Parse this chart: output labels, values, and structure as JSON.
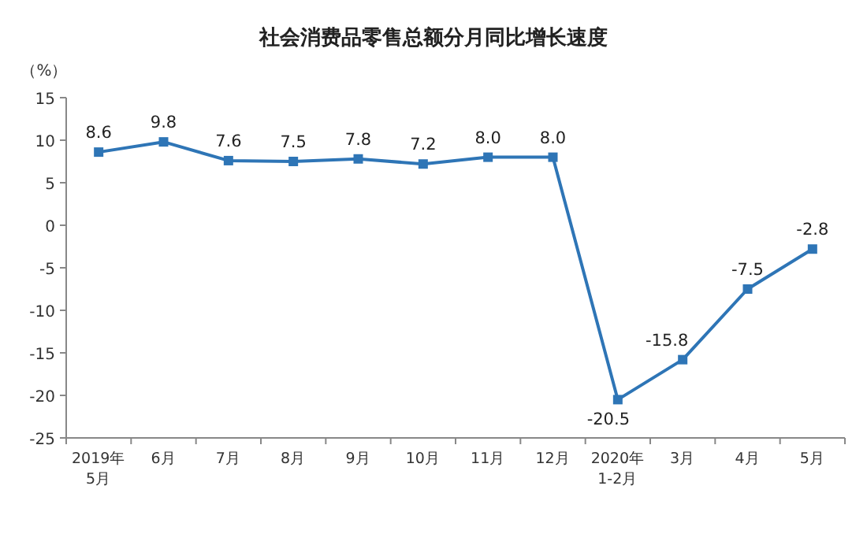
{
  "chart_data": {
    "type": "line",
    "title": "社会消费品零售总额分月同比增长速度",
    "ylabel": "（%）",
    "categories": [
      "2019年 5月",
      "6月",
      "7月",
      "8月",
      "9月",
      "10月",
      "11月",
      "12月",
      "2020年 1-2月",
      "3月",
      "4月",
      "5月"
    ],
    "values": [
      8.6,
      9.8,
      7.6,
      7.5,
      7.8,
      7.2,
      8.0,
      8.0,
      -20.5,
      -15.8,
      -7.5,
      -2.8
    ],
    "value_labels": [
      "8.6",
      "9.8",
      "7.6",
      "7.5",
      "7.8",
      "7.2",
      "8.0",
      "8.0",
      "-20.5",
      "-15.8",
      "-7.5",
      "-2.8"
    ],
    "color": "#2e75b6",
    "marker": "square",
    "ylim": [
      -25,
      15
    ],
    "yticks": [
      -25,
      -20,
      -15,
      -10,
      -5,
      0,
      5,
      10,
      15
    ]
  }
}
